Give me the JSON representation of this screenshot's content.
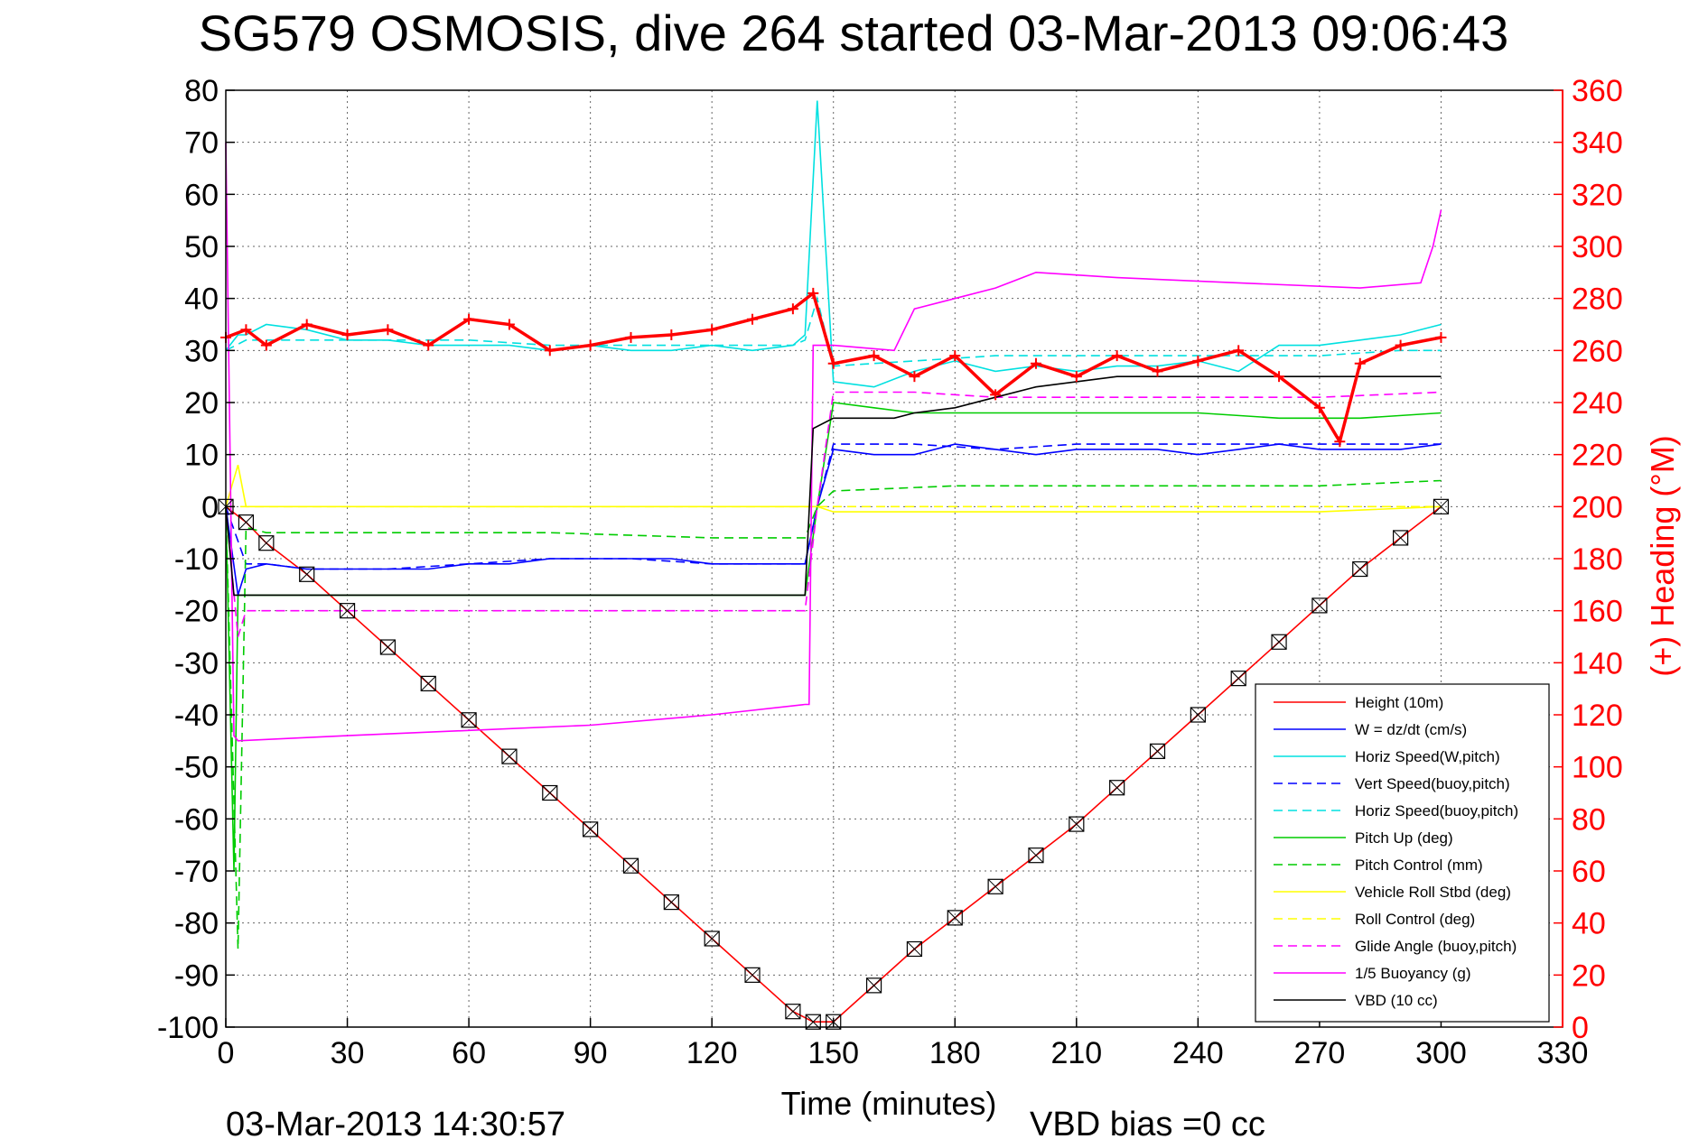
{
  "chart_data": {
    "type": "line",
    "title": "SG579 OSMOSIS, dive 264 started 03-Mar-2013 09:06:43",
    "xlabel": "Time (minutes)",
    "ylabel_right": "(+) Heading (°M)",
    "xlim": [
      0,
      330
    ],
    "ylim_left": [
      -100,
      80
    ],
    "ylim_right": [
      0,
      360
    ],
    "x_ticks": [
      0,
      30,
      60,
      90,
      120,
      150,
      180,
      210,
      240,
      270,
      300,
      330
    ],
    "x_tick_labels": [
      "0",
      "30",
      "60",
      "90",
      "120",
      "150",
      "180",
      "210",
      "240",
      "270",
      "300",
      "330"
    ],
    "y_ticks_left": [
      -100,
      -90,
      -80,
      -70,
      -60,
      -50,
      -40,
      -30,
      -20,
      -10,
      0,
      10,
      20,
      30,
      40,
      50,
      60,
      70,
      80
    ],
    "y_tick_labels_left": [
      "-100",
      "-90",
      "-80",
      "-70",
      "-60",
      "-50",
      "-40",
      "-30",
      "-20",
      "-10",
      "0",
      "10",
      "20",
      "30",
      "40",
      "50",
      "60",
      "70",
      "80"
    ],
    "y_ticks_right": [
      0,
      20,
      40,
      60,
      80,
      100,
      120,
      140,
      160,
      180,
      200,
      220,
      240,
      260,
      280,
      300,
      320,
      340,
      360
    ],
    "y_tick_labels_right": [
      "0",
      "20",
      "40",
      "60",
      "80",
      "100",
      "120",
      "140",
      "160",
      "180",
      "200",
      "220",
      "240",
      "260",
      "280",
      "300",
      "320",
      "340",
      "360"
    ],
    "grid": true,
    "legend_position": "lower-right",
    "bottom_left_text": "03-Mar-2013 14:30:57",
    "bottom_center_text": "VBD bias =0 cc",
    "colors": {
      "axis_right": "#ff0000",
      "grid": "#666666"
    },
    "series": [
      {
        "name": "Height (10m)",
        "color": "#ff0000",
        "dash": "solid",
        "x": [
          0,
          5,
          10,
          20,
          30,
          40,
          50,
          60,
          70,
          80,
          90,
          100,
          110,
          120,
          130,
          140,
          145,
          150,
          160,
          170,
          180,
          190,
          200,
          210,
          220,
          230,
          240,
          250,
          260,
          270,
          280,
          290,
          300
        ],
        "y": [
          0,
          -3,
          -7,
          -13,
          -20,
          -27,
          -34,
          -41,
          -48,
          -55,
          -62,
          -69,
          -76,
          -83,
          -90,
          -97,
          -99,
          -99,
          -92,
          -85,
          -79,
          -73,
          -67,
          -61,
          -54,
          -47,
          -40,
          -33,
          -26,
          -19,
          -12,
          -6,
          0
        ]
      },
      {
        "name": "W = dz/dt (cm/s)",
        "color": "#0000ff",
        "dash": "solid",
        "x": [
          0,
          3,
          5,
          10,
          20,
          30,
          40,
          50,
          60,
          70,
          80,
          90,
          100,
          110,
          120,
          130,
          140,
          143,
          146,
          150,
          160,
          170,
          180,
          190,
          200,
          210,
          220,
          230,
          240,
          250,
          260,
          270,
          280,
          290,
          300
        ],
        "y": [
          0,
          -17,
          -12,
          -11,
          -12,
          -12,
          -12,
          -12,
          -11,
          -11,
          -10,
          -10,
          -10,
          -10,
          -11,
          -11,
          -11,
          -11,
          0,
          11,
          10,
          10,
          12,
          11,
          10,
          11,
          11,
          11,
          10,
          11,
          12,
          11,
          11,
          11,
          12
        ]
      },
      {
        "name": "Horiz Speed(W,pitch)",
        "color": "#00e0e0",
        "dash": "solid",
        "x": [
          0,
          3,
          5,
          10,
          20,
          30,
          40,
          50,
          60,
          70,
          80,
          90,
          100,
          110,
          120,
          130,
          140,
          143,
          146,
          150,
          160,
          170,
          180,
          190,
          200,
          210,
          220,
          230,
          240,
          250,
          260,
          270,
          280,
          290,
          300
        ],
        "y": [
          30,
          33,
          33,
          35,
          34,
          32,
          32,
          31,
          31,
          31,
          30,
          31,
          30,
          30,
          31,
          30,
          31,
          33,
          78,
          24,
          23,
          26,
          28,
          26,
          27,
          26,
          27,
          27,
          28,
          26,
          31,
          31,
          32,
          33,
          35
        ]
      },
      {
        "name": "Vert Speed(buoy,pitch)",
        "color": "#0000ff",
        "dash": "dashed",
        "x": [
          0,
          5,
          10,
          20,
          40,
          60,
          80,
          100,
          120,
          140,
          143,
          146,
          150,
          170,
          190,
          210,
          230,
          250,
          270,
          290,
          300
        ],
        "y": [
          0,
          -11,
          -11,
          -12,
          -12,
          -11,
          -10,
          -10,
          -11,
          -11,
          -11,
          0,
          12,
          12,
          11,
          12,
          12,
          12,
          12,
          12,
          12
        ]
      },
      {
        "name": "Horiz Speed(buoy,pitch)",
        "color": "#00e0e0",
        "dash": "dashed",
        "x": [
          0,
          5,
          10,
          20,
          40,
          60,
          80,
          100,
          120,
          140,
          143,
          146,
          150,
          170,
          190,
          210,
          230,
          250,
          270,
          290,
          300
        ],
        "y": [
          30,
          32,
          32,
          32,
          32,
          32,
          31,
          31,
          31,
          31,
          32,
          40,
          27,
          28,
          29,
          29,
          29,
          29,
          29,
          30,
          30
        ]
      },
      {
        "name": "Pitch Up (deg)",
        "color": "#00cc00",
        "dash": "solid",
        "x": [
          0,
          2,
          3,
          5,
          10,
          20,
          40,
          60,
          80,
          100,
          120,
          140,
          143,
          146,
          150,
          160,
          170,
          180,
          200,
          220,
          240,
          260,
          280,
          300
        ],
        "y": [
          0,
          -70,
          -17,
          -17,
          -17,
          -17,
          -17,
          -17,
          -17,
          -17,
          -17,
          -17,
          -17,
          0,
          20,
          19,
          18,
          18,
          18,
          18,
          18,
          17,
          17,
          18
        ]
      },
      {
        "name": "Pitch Control (mm)",
        "color": "#00cc00",
        "dash": "dashed",
        "x": [
          0,
          3,
          5,
          10,
          40,
          80,
          120,
          143,
          146,
          150,
          180,
          210,
          240,
          270,
          300
        ],
        "y": [
          0,
          -85,
          -4,
          -5,
          -5,
          -5,
          -6,
          -6,
          0,
          3,
          4,
          4,
          4,
          4,
          5
        ]
      },
      {
        "name": "Vehicle Roll Stbd (deg)",
        "color": "#ffff00",
        "dash": "solid",
        "x": [
          0,
          3,
          5,
          30,
          60,
          90,
          120,
          143,
          146,
          150,
          180,
          210,
          240,
          270,
          300
        ],
        "y": [
          0,
          8,
          0,
          0,
          0,
          0,
          0,
          0,
          0,
          -1,
          -1,
          -1,
          -1,
          -1,
          0
        ]
      },
      {
        "name": "Roll Control (deg)",
        "color": "#ffff00",
        "dash": "dashed",
        "x": [
          0,
          5,
          60,
          120,
          143,
          150,
          210,
          270,
          300
        ],
        "y": [
          0,
          0,
          0,
          0,
          0,
          0,
          0,
          0,
          0
        ]
      },
      {
        "name": "Glide Angle (buoy,pitch)",
        "color": "#ff00ff",
        "dash": "dashed",
        "x": [
          0,
          3,
          5,
          20,
          40,
          60,
          80,
          100,
          120,
          143,
          146,
          150,
          170,
          190,
          210,
          240,
          270,
          300
        ],
        "y": [
          0,
          -25,
          -20,
          -20,
          -20,
          -20,
          -20,
          -20,
          -20,
          -20,
          0,
          22,
          22,
          21,
          21,
          21,
          21,
          22
        ]
      },
      {
        "name": "1/5 Buoyancy (g)",
        "color": "#ff00ff",
        "dash": "solid",
        "x": [
          0,
          2,
          3,
          30,
          60,
          90,
          120,
          143,
          144,
          145,
          150,
          165,
          170,
          180,
          190,
          200,
          220,
          250,
          280,
          295,
          298,
          300
        ],
        "y": [
          70,
          -44,
          -45,
          -44,
          -43,
          -42,
          -40,
          -38,
          -38,
          31,
          31,
          30,
          38,
          40,
          42,
          45,
          44,
          43,
          42,
          43,
          50,
          57
        ]
      },
      {
        "name": "VBD (10 cc)",
        "color": "#000000",
        "dash": "solid",
        "x": [
          0,
          2,
          3,
          143,
          145,
          150,
          165,
          170,
          180,
          190,
          200,
          220,
          240,
          260,
          280,
          300
        ],
        "y": [
          0,
          -17,
          -17,
          -17,
          15,
          17,
          17,
          18,
          19,
          21,
          23,
          25,
          25,
          25,
          25,
          25
        ]
      },
      {
        "name": "",
        "color": "#ff0000",
        "dash": "heading",
        "axis": "right",
        "x": [
          0,
          5,
          10,
          20,
          30,
          40,
          50,
          60,
          70,
          80,
          90,
          100,
          110,
          120,
          130,
          140,
          145,
          150,
          160,
          170,
          180,
          190,
          200,
          210,
          220,
          230,
          240,
          250,
          260,
          270,
          275,
          280,
          290,
          300
        ],
        "y": [
          265,
          268,
          262,
          270,
          266,
          268,
          262,
          272,
          270,
          260,
          262,
          265,
          266,
          268,
          272,
          276,
          282,
          255,
          258,
          250,
          258,
          243,
          255,
          250,
          258,
          252,
          256,
          260,
          250,
          238,
          225,
          255,
          262,
          265
        ]
      }
    ]
  }
}
